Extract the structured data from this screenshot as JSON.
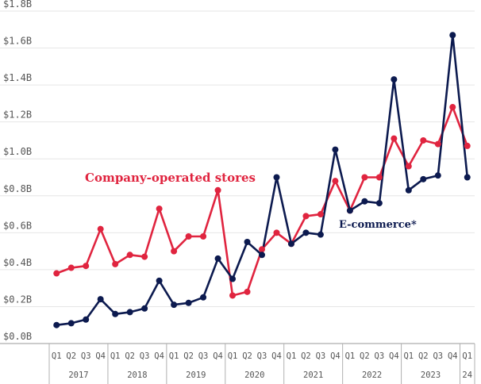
{
  "chart_data": {
    "type": "line",
    "x": [
      "Q1",
      "Q2",
      "Q3",
      "Q4",
      "Q1",
      "Q2",
      "Q3",
      "Q4",
      "Q1",
      "Q2",
      "Q3",
      "Q4",
      "Q1",
      "Q2",
      "Q3",
      "Q4",
      "Q1",
      "Q2",
      "Q3",
      "Q4",
      "Q1",
      "Q2",
      "Q3",
      "Q4",
      "Q1",
      "Q2",
      "Q3",
      "Q4",
      "Q1"
    ],
    "years": [
      "2017",
      "2018",
      "2019",
      "2020",
      "2021",
      "2022",
      "2023",
      "24"
    ],
    "y_ticks": [
      "$0.0B",
      "$0.2B",
      "$0.4B",
      "$0.6B",
      "$0.8B",
      "$1.0B",
      "$1.2B",
      "$1.4B",
      "$1.6B",
      "$1.8B"
    ],
    "ylim": [
      0,
      1.8
    ],
    "grid": true,
    "series": [
      {
        "name": "Company-operated stores",
        "color": "#e0243f",
        "values": [
          0.38,
          0.41,
          0.42,
          0.62,
          0.43,
          0.48,
          0.47,
          0.73,
          0.5,
          0.58,
          0.58,
          0.83,
          0.26,
          0.28,
          0.51,
          0.6,
          0.54,
          0.69,
          0.7,
          0.88,
          0.72,
          0.9,
          0.9,
          1.11,
          0.96,
          1.1,
          1.08,
          1.28,
          1.07
        ]
      },
      {
        "name": "E-commerce*",
        "color": "#0c1a4f",
        "values": [
          0.1,
          0.11,
          0.13,
          0.24,
          0.16,
          0.17,
          0.19,
          0.34,
          0.21,
          0.22,
          0.25,
          0.46,
          0.35,
          0.55,
          0.48,
          0.9,
          0.54,
          0.6,
          0.59,
          1.05,
          0.72,
          0.77,
          0.76,
          1.43,
          0.83,
          0.89,
          0.91,
          1.67,
          0.9
        ]
      }
    ]
  }
}
